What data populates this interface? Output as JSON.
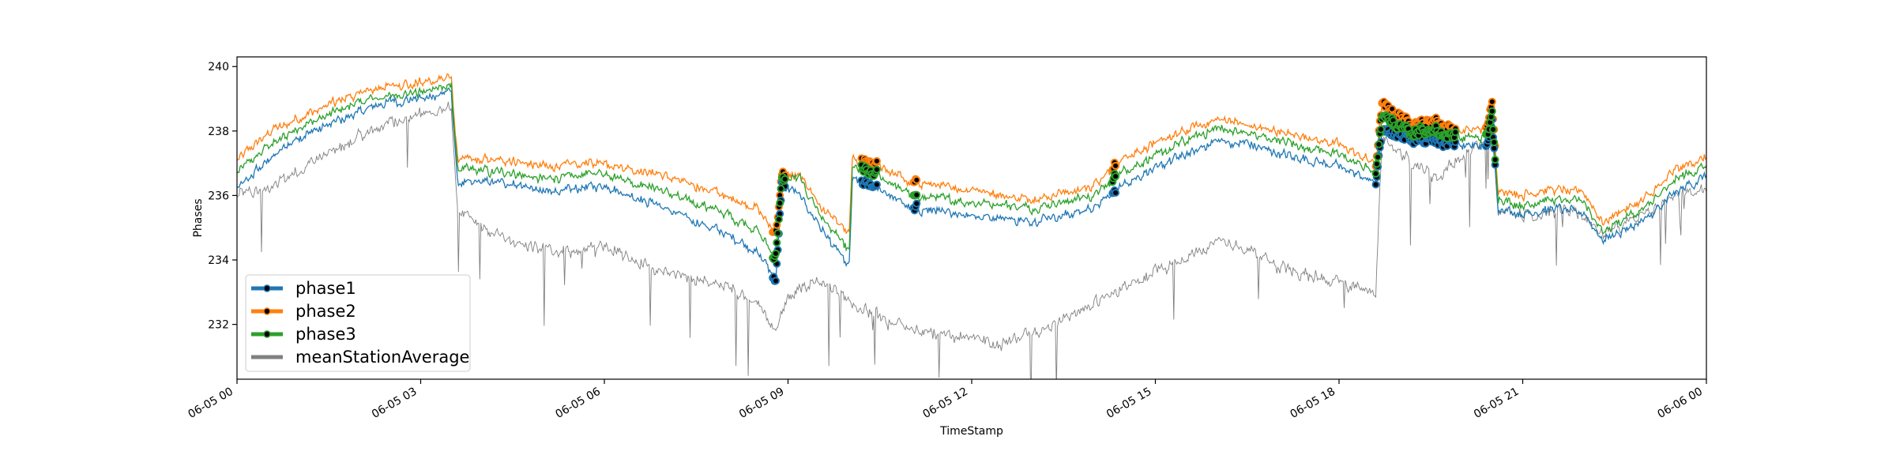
{
  "chart_data": {
    "type": "line",
    "title": "",
    "xlabel": "TimeStamp",
    "ylabel": "Phases",
    "x_unit": "hours from 06-05 00:00",
    "xlim": [
      0,
      24
    ],
    "ylim": [
      230.3,
      240.3
    ],
    "x_ticks": [
      {
        "x": 0,
        "label": "06-05 00"
      },
      {
        "x": 3,
        "label": "06-05 03"
      },
      {
        "x": 6,
        "label": "06-05 06"
      },
      {
        "x": 9,
        "label": "06-05 09"
      },
      {
        "x": 12,
        "label": "06-05 12"
      },
      {
        "x": 15,
        "label": "06-05 15"
      },
      {
        "x": 18,
        "label": "06-05 18"
      },
      {
        "x": 21,
        "label": "06-05 21"
      },
      {
        "x": 24,
        "label": "06-06 00"
      }
    ],
    "y_ticks": [
      232,
      234,
      236,
      238,
      240
    ],
    "grid": false,
    "legend_position": "lower-left",
    "series": [
      {
        "name": "phase1",
        "color": "#1f77b4",
        "marker": "circle"
      },
      {
        "name": "phase2",
        "color": "#ff7f0e",
        "marker": "circle"
      },
      {
        "name": "phase3",
        "color": "#2ca02c",
        "marker": "circle"
      },
      {
        "name": "meanStationAverage",
        "color": "#808080",
        "marker": "none"
      }
    ],
    "keypoints": {
      "phase2": [
        [
          0,
          237.1
        ],
        [
          0.5,
          237.9
        ],
        [
          1,
          238.4
        ],
        [
          1.5,
          238.8
        ],
        [
          2,
          239.2
        ],
        [
          2.5,
          239.4
        ],
        [
          3,
          239.5
        ],
        [
          3.5,
          239.7
        ],
        [
          3.6,
          237.1
        ],
        [
          4.5,
          237.1
        ],
        [
          5,
          236.9
        ],
        [
          6,
          237.0
        ],
        [
          7,
          236.6
        ],
        [
          8,
          236.0
        ],
        [
          8.5,
          235.6
        ],
        [
          8.8,
          234.8
        ],
        [
          8.9,
          236.6
        ],
        [
          9.2,
          236.6
        ],
        [
          9.6,
          235.5
        ],
        [
          10,
          234.8
        ],
        [
          10.05,
          237.1
        ],
        [
          10.5,
          236.9
        ],
        [
          11,
          236.4
        ],
        [
          12,
          236.2
        ],
        [
          13,
          235.9
        ],
        [
          14,
          236.3
        ],
        [
          14.5,
          237.2
        ],
        [
          15,
          237.6
        ],
        [
          15.5,
          238.0
        ],
        [
          16,
          238.4
        ],
        [
          16.5,
          238.2
        ],
        [
          17,
          238.0
        ],
        [
          18,
          237.6
        ],
        [
          18.6,
          237.0
        ],
        [
          18.7,
          238.8
        ],
        [
          19.2,
          238.2
        ],
        [
          19.6,
          238.3
        ],
        [
          20,
          238.0
        ],
        [
          20.4,
          238.1
        ],
        [
          20.5,
          238.8
        ],
        [
          20.6,
          236.2
        ],
        [
          21,
          236.0
        ],
        [
          21.5,
          236.2
        ],
        [
          22,
          236.1
        ],
        [
          22.3,
          235.2
        ],
        [
          23,
          235.9
        ],
        [
          23.5,
          236.8
        ],
        [
          24,
          237.2
        ]
      ],
      "phase1": [
        [
          0,
          236.2
        ],
        [
          0.5,
          237.1
        ],
        [
          1,
          237.8
        ],
        [
          1.5,
          238.2
        ],
        [
          2,
          238.6
        ],
        [
          2.5,
          238.9
        ],
        [
          3,
          239.0
        ],
        [
          3.5,
          239.2
        ],
        [
          3.6,
          236.4
        ],
        [
          4.5,
          236.4
        ],
        [
          5,
          236.1
        ],
        [
          6,
          236.3
        ],
        [
          7,
          235.6
        ],
        [
          8,
          234.8
        ],
        [
          8.5,
          234.2
        ],
        [
          8.8,
          233.4
        ],
        [
          8.9,
          236.3
        ],
        [
          9.2,
          236.0
        ],
        [
          9.6,
          234.8
        ],
        [
          10,
          233.8
        ],
        [
          10.05,
          236.5
        ],
        [
          10.5,
          236.2
        ],
        [
          11,
          235.6
        ],
        [
          12,
          235.4
        ],
        [
          13,
          235.2
        ],
        [
          14,
          235.6
        ],
        [
          14.5,
          236.4
        ],
        [
          15,
          236.8
        ],
        [
          15.5,
          237.3
        ],
        [
          16,
          237.7
        ],
        [
          16.5,
          237.6
        ],
        [
          17,
          237.3
        ],
        [
          18,
          236.9
        ],
        [
          18.6,
          236.4
        ],
        [
          18.7,
          238.0
        ],
        [
          19.2,
          237.8
        ],
        [
          19.6,
          237.7
        ],
        [
          20,
          237.6
        ],
        [
          20.4,
          237.5
        ],
        [
          20.5,
          238.2
        ],
        [
          20.6,
          235.6
        ],
        [
          21,
          235.4
        ],
        [
          21.5,
          235.6
        ],
        [
          22,
          235.5
        ],
        [
          22.3,
          234.6
        ],
        [
          23,
          235.2
        ],
        [
          23.5,
          236.1
        ],
        [
          24,
          236.6
        ]
      ],
      "phase3": [
        [
          0,
          236.7
        ],
        [
          0.5,
          237.5
        ],
        [
          1,
          238.1
        ],
        [
          1.5,
          238.5
        ],
        [
          2,
          238.9
        ],
        [
          2.5,
          239.1
        ],
        [
          3,
          239.2
        ],
        [
          3.5,
          239.4
        ],
        [
          3.6,
          236.8
        ],
        [
          4.5,
          236.7
        ],
        [
          5,
          236.5
        ],
        [
          6,
          236.7
        ],
        [
          7,
          236.1
        ],
        [
          8,
          235.4
        ],
        [
          8.5,
          234.9
        ],
        [
          8.8,
          234.1
        ],
        [
          8.9,
          236.5
        ],
        [
          9.2,
          236.5
        ],
        [
          9.6,
          235.2
        ],
        [
          10,
          234.3
        ],
        [
          10.05,
          236.9
        ],
        [
          10.5,
          236.6
        ],
        [
          11,
          236.0
        ],
        [
          12,
          235.8
        ],
        [
          13,
          235.6
        ],
        [
          14,
          236.0
        ],
        [
          14.5,
          236.8
        ],
        [
          15,
          237.2
        ],
        [
          15.5,
          237.7
        ],
        [
          16,
          238.1
        ],
        [
          16.5,
          237.9
        ],
        [
          17,
          237.7
        ],
        [
          18,
          237.3
        ],
        [
          18.6,
          236.7
        ],
        [
          18.7,
          238.4
        ],
        [
          19.2,
          238.0
        ],
        [
          19.6,
          238.0
        ],
        [
          20,
          237.8
        ],
        [
          20.4,
          237.8
        ],
        [
          20.5,
          238.5
        ],
        [
          20.6,
          235.9
        ],
        [
          21,
          235.7
        ],
        [
          21.5,
          235.9
        ],
        [
          22,
          235.8
        ],
        [
          22.3,
          234.9
        ],
        [
          23,
          235.6
        ],
        [
          23.5,
          236.5
        ],
        [
          24,
          236.9
        ]
      ],
      "meanStationAverage": [
        [
          0,
          236.0
        ],
        [
          0.5,
          236.2
        ],
        [
          1,
          236.8
        ],
        [
          1.5,
          237.3
        ],
        [
          2,
          237.8
        ],
        [
          2.5,
          238.3
        ],
        [
          3,
          238.5
        ],
        [
          3.5,
          238.7
        ],
        [
          3.6,
          235.6
        ],
        [
          4,
          235.0
        ],
        [
          4.5,
          234.6
        ],
        [
          5,
          234.3
        ],
        [
          5.5,
          234.2
        ],
        [
          6,
          234.5
        ],
        [
          6.5,
          234.0
        ],
        [
          7,
          233.6
        ],
        [
          8,
          233.2
        ],
        [
          8.5,
          232.6
        ],
        [
          8.8,
          231.8
        ],
        [
          9,
          232.8
        ],
        [
          9.5,
          233.4
        ],
        [
          10,
          232.6
        ],
        [
          10.5,
          232.2
        ],
        [
          11,
          231.8
        ],
        [
          12,
          231.6
        ],
        [
          12.5,
          231.4
        ],
        [
          13,
          231.8
        ],
        [
          14,
          232.6
        ],
        [
          14.5,
          233.2
        ],
        [
          15,
          233.6
        ],
        [
          15.5,
          234.0
        ],
        [
          16,
          234.6
        ],
        [
          16.5,
          234.3
        ],
        [
          17,
          233.8
        ],
        [
          18,
          233.3
        ],
        [
          18.6,
          233.0
        ],
        [
          18.7,
          237.8
        ],
        [
          19.2,
          237.0
        ],
        [
          19.6,
          236.6
        ],
        [
          20,
          237.2
        ],
        [
          20.5,
          237.8
        ],
        [
          20.6,
          235.6
        ],
        [
          21,
          235.4
        ],
        [
          21.5,
          235.5
        ],
        [
          22,
          235.4
        ],
        [
          22.3,
          234.8
        ],
        [
          23,
          235.4
        ],
        [
          23.5,
          236.0
        ],
        [
          24,
          236.2
        ]
      ]
    },
    "noise_amplitude": {
      "phase1": 0.25,
      "phase2": 0.25,
      "phase3": 0.25,
      "meanStationAverage": 0.35
    },
    "marked_ranges": [
      [
        8.75,
        8.95
      ],
      [
        10.2,
        10.45
      ],
      [
        11.05,
        11.1
      ],
      [
        14.3,
        14.35
      ],
      [
        18.6,
        19.9
      ],
      [
        20.4,
        20.55
      ]
    ]
  }
}
